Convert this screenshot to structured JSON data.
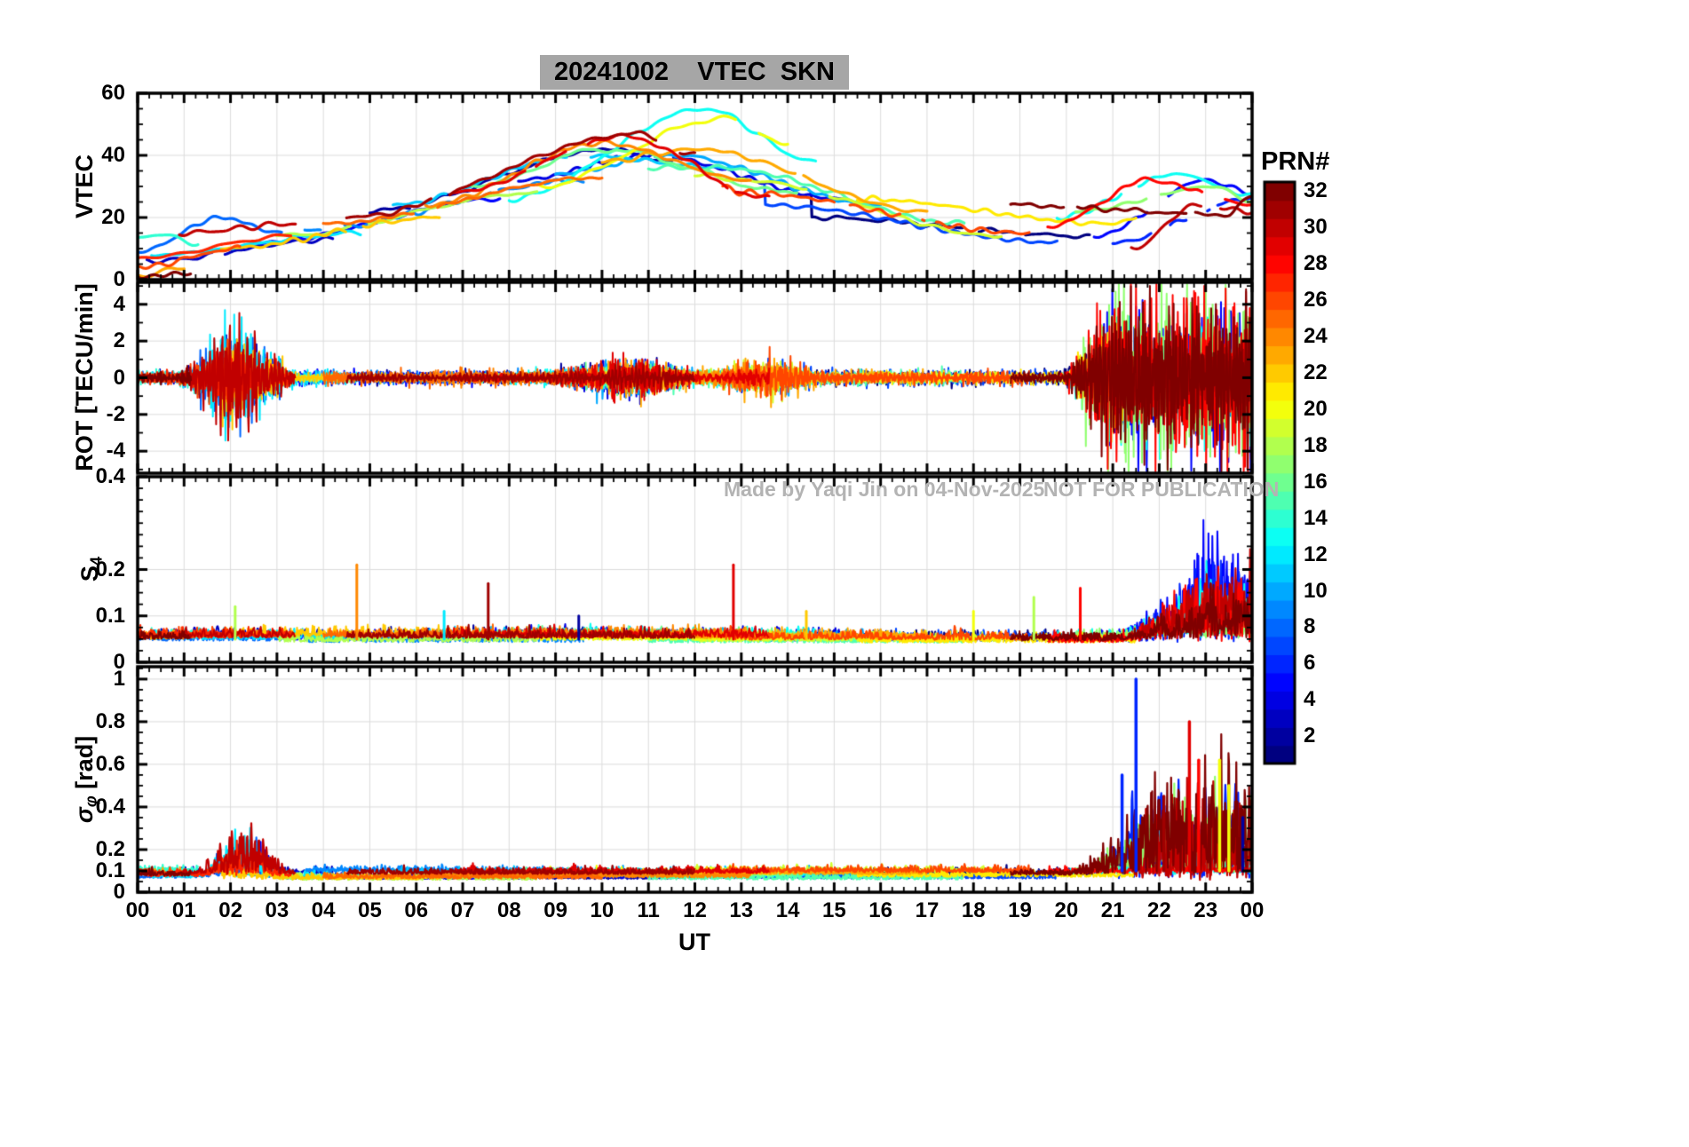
{
  "chart_data": {
    "type": "line",
    "title": "20241002    VTEC  SKN",
    "x": {
      "label": "UT",
      "lim": [
        0,
        24
      ],
      "ticks": [
        0,
        1,
        2,
        3,
        4,
        5,
        6,
        7,
        8,
        9,
        10,
        11,
        12,
        13,
        14,
        15,
        16,
        17,
        18,
        19,
        20,
        21,
        22,
        23,
        24
      ],
      "ticklabels": [
        "00",
        "01",
        "02",
        "03",
        "04",
        "05",
        "06",
        "07",
        "08",
        "09",
        "10",
        "11",
        "12",
        "13",
        "14",
        "15",
        "16",
        "17",
        "18",
        "19",
        "20",
        "21",
        "22",
        "23",
        "00"
      ]
    },
    "panels": [
      {
        "id": "vtec",
        "ylabel": "VTEC",
        "ylim": [
          0,
          60
        ],
        "yticks": [
          0,
          20,
          40,
          60
        ],
        "yticklabels": [
          "0",
          "20",
          "40",
          "60"
        ],
        "minor": 5
      },
      {
        "id": "rot",
        "ylabel": "ROT [TECU/min]",
        "ylim": [
          -5.2,
          5.2
        ],
        "yticks": [
          -4,
          -2,
          0,
          2,
          4
        ],
        "yticklabels": [
          "-4",
          "-2",
          "0",
          "2",
          "4"
        ],
        "minor": 1
      },
      {
        "id": "s4",
        "ylabel_main": "S",
        "ylabel_sub": "4",
        "ylim": [
          0,
          0.4
        ],
        "yticks": [
          0,
          0.1,
          0.2,
          0.4
        ],
        "yticklabels": [
          "0",
          "0.1",
          "0.2",
          "0.4"
        ],
        "minor": 0.025
      },
      {
        "id": "sigma",
        "ylabel_main": "σ",
        "ylabel_sub": "φ",
        "ylabel_suffix": " [rad]",
        "ylim": [
          0,
          1.058
        ],
        "yticks": [
          0,
          0.1,
          0.2,
          0.4,
          0.6,
          0.8,
          1
        ],
        "yticklabels": [
          "0",
          "0.1",
          "0.2",
          "0.4",
          "0.6",
          "0.8",
          "1"
        ],
        "minor": 0.05
      }
    ],
    "colorbar": {
      "title": "PRN#",
      "min": 1,
      "max": 32,
      "ticks": [
        2,
        4,
        6,
        8,
        10,
        12,
        14,
        16,
        18,
        20,
        22,
        24,
        26,
        28,
        30,
        32
      ],
      "colormap": "jet"
    },
    "annotations": [
      {
        "text": "Made by Yaqi Jin on 04-Nov-2025"
      },
      {
        "text": "NOT FOR PUBLICATION"
      }
    ],
    "arcs": [
      [
        14,
        0.0,
        1.3,
        13,
        15,
        11,
        0.6
      ],
      [
        8,
        0.0,
        3.1,
        9,
        20,
        15,
        1.8
      ],
      [
        27,
        0.0,
        3.3,
        7,
        14,
        20,
        3.3
      ],
      [
        26,
        0.0,
        2.2,
        4,
        10,
        14,
        2.2
      ],
      [
        3,
        0.2,
        4.2,
        6,
        13,
        19,
        4.2
      ],
      [
        30,
        0.9,
        3.4,
        15,
        18,
        21,
        3.4
      ],
      [
        12,
        0.3,
        4.8,
        8,
        15,
        22,
        4.8
      ],
      [
        32,
        0.0,
        1.15,
        1,
        2,
        3,
        1.15
      ],
      [
        23,
        0.0,
        1.0,
        1,
        4,
        7,
        1.0
      ],
      [
        22,
        1.8,
        6.5,
        10,
        20,
        28,
        6.5
      ],
      [
        5,
        2.6,
        7.8,
        12,
        26,
        32,
        7.8
      ],
      [
        18,
        3.0,
        8.6,
        14,
        28,
        34,
        8.6
      ],
      [
        9,
        3.6,
        9.6,
        16,
        32,
        36,
        9.6
      ],
      [
        25,
        4.0,
        10.0,
        18,
        33,
        36,
        10.0
      ],
      [
        31,
        4.5,
        12.0,
        20,
        47,
        40,
        10.8
      ],
      [
        2,
        5.0,
        11.5,
        22,
        42,
        38,
        10.2
      ],
      [
        11,
        5.5,
        12.8,
        24,
        40,
        36,
        9.5
      ],
      [
        13,
        8.0,
        14.6,
        26,
        55,
        38,
        12.2
      ],
      [
        20,
        8.6,
        14.0,
        30,
        52,
        44,
        12.6
      ],
      [
        24,
        6.2,
        13.2,
        24,
        44,
        32,
        10.0
      ],
      [
        29,
        6.8,
        13.6,
        28,
        46,
        26,
        10.5
      ],
      [
        16,
        7.2,
        14.2,
        30,
        42,
        28,
        10.0
      ],
      [
        4,
        8.2,
        15.2,
        32,
        40,
        26,
        11.0
      ],
      [
        10,
        9.0,
        16.0,
        34,
        40,
        24,
        11.5
      ],
      [
        23,
        10.0,
        17.0,
        38,
        42,
        22,
        12.0
      ],
      [
        15,
        11.0,
        17.8,
        36,
        36,
        18,
        12.5
      ],
      [
        19,
        12.0,
        18.6,
        34,
        32,
        14,
        13.0
      ],
      [
        26,
        12.6,
        19.2,
        30,
        28,
        15,
        13.0
      ],
      [
        7,
        13.5,
        19.8,
        30,
        24,
        12,
        13.5
      ],
      [
        1,
        14.5,
        20.5,
        28,
        20,
        14,
        14.5
      ],
      [
        21,
        15.5,
        21.5,
        26,
        18,
        20,
        21.0
      ],
      [
        32,
        18.8,
        24.0,
        24,
        21,
        27,
        23.5
      ],
      [
        28,
        19.6,
        24.0,
        17,
        32,
        24,
        21.8
      ],
      [
        13,
        19.8,
        24.0,
        20,
        34,
        27,
        22.4
      ],
      [
        5,
        20.6,
        24.0,
        14,
        32,
        28,
        23.0
      ],
      [
        17,
        20.2,
        24.0,
        22,
        30,
        25,
        23.2
      ],
      [
        6,
        21.0,
        24.0,
        12,
        26,
        30,
        24.0
      ],
      [
        30,
        21.4,
        24.0,
        10,
        24,
        22,
        22.8
      ]
    ],
    "rot_events": [
      {
        "t0": 0.8,
        "t1": 3.5,
        "amp": 2.6
      },
      {
        "t0": 8.5,
        "t1": 12.5,
        "amp": 0.9
      },
      {
        "t0": 12.0,
        "t1": 15.0,
        "amp": 0.7
      },
      {
        "t0": 19.8,
        "t1": 24.0,
        "amp": 4.2
      }
    ],
    "s4_event": {
      "t0": 21.0,
      "t1": 24.0,
      "amp": 0.16
    },
    "s4_spikes": [
      {
        "t": 4.72,
        "prn": 24,
        "v": 0.21
      },
      {
        "t": 7.55,
        "prn": 31,
        "v": 0.17
      },
      {
        "t": 12.83,
        "prn": 29,
        "v": 0.21
      },
      {
        "t": 2.1,
        "prn": 18,
        "v": 0.12
      },
      {
        "t": 6.6,
        "prn": 12,
        "v": 0.11
      },
      {
        "t": 9.5,
        "prn": 2,
        "v": 0.1
      },
      {
        "t": 14.4,
        "prn": 22,
        "v": 0.11
      },
      {
        "t": 18.0,
        "prn": 20,
        "v": 0.11
      },
      {
        "t": 19.3,
        "prn": 18,
        "v": 0.14
      },
      {
        "t": 20.3,
        "prn": 28,
        "v": 0.16
      }
    ],
    "sigma_events": [
      {
        "t0": 1.2,
        "t1": 3.4,
        "amp": 0.16
      },
      {
        "t0": 20.0,
        "t1": 24.0,
        "amp": 0.5
      }
    ],
    "sigma_spikes": [
      {
        "t": 21.5,
        "prn": 6,
        "v": 1.0
      },
      {
        "t": 21.2,
        "prn": 6,
        "v": 0.55
      },
      {
        "t": 22.65,
        "prn": 29,
        "v": 0.8
      },
      {
        "t": 22.85,
        "prn": 28,
        "v": 0.62
      },
      {
        "t": 23.3,
        "prn": 20,
        "v": 0.62
      },
      {
        "t": 23.5,
        "prn": 20,
        "v": 0.5
      },
      {
        "t": 22.1,
        "prn": 31,
        "v": 0.45
      },
      {
        "t": 23.8,
        "prn": 2,
        "v": 0.35
      }
    ]
  }
}
